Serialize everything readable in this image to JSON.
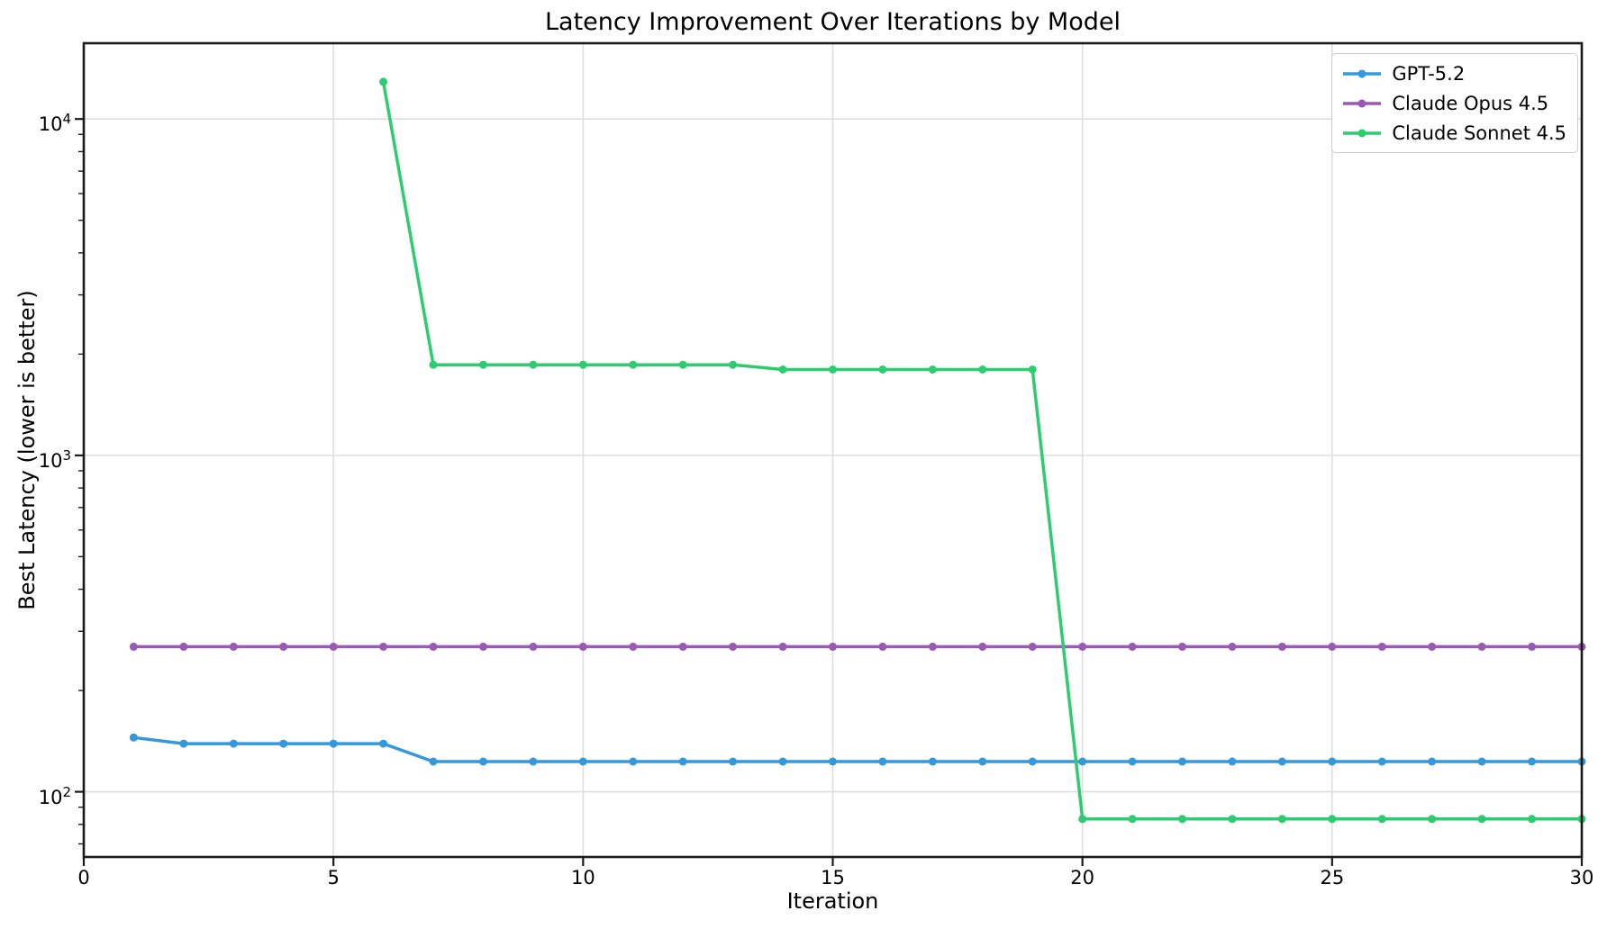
{
  "chart_data": {
    "type": "line",
    "title": "Latency Improvement Over Iterations by Model",
    "xlabel": "Iteration",
    "ylabel": "Best Latency (lower is better)",
    "yscale": "log",
    "grid": true,
    "legend_position": "upper right",
    "xlim": [
      0,
      30
    ],
    "ylim": [
      64,
      16800
    ],
    "x_ticks": [
      0,
      5,
      10,
      15,
      20,
      25,
      30
    ],
    "y_ticks": [
      {
        "value": 100,
        "exponent": 2
      },
      {
        "value": 1000,
        "exponent": 3
      },
      {
        "value": 10000,
        "exponent": 4
      }
    ],
    "colors": {
      "grid": "#dedede",
      "spine": "#1a1a1a",
      "background": "#ffffff"
    },
    "series": [
      {
        "name": "GPT-5.2",
        "color": "#3498db",
        "x": [
          1,
          2,
          3,
          4,
          5,
          6,
          7,
          8,
          9,
          10,
          11,
          12,
          13,
          14,
          15,
          16,
          17,
          18,
          19,
          20,
          21,
          22,
          23,
          24,
          25,
          26,
          27,
          28,
          29,
          30
        ],
        "y": [
          145,
          139,
          139,
          139,
          139,
          139,
          123,
          123,
          123,
          123,
          123,
          123,
          123,
          123,
          123,
          123,
          123,
          123,
          123,
          123,
          123,
          123,
          123,
          123,
          123,
          123,
          123,
          123,
          123,
          123
        ]
      },
      {
        "name": "Claude Opus 4.5",
        "color": "#9b59b6",
        "x": [
          1,
          2,
          3,
          4,
          5,
          6,
          7,
          8,
          9,
          10,
          11,
          12,
          13,
          14,
          15,
          16,
          17,
          18,
          19,
          20,
          21,
          22,
          23,
          24,
          25,
          26,
          27,
          28,
          29,
          30
        ],
        "y": [
          270,
          270,
          270,
          270,
          270,
          270,
          270,
          270,
          270,
          270,
          270,
          270,
          270,
          270,
          270,
          270,
          270,
          270,
          270,
          270,
          270,
          270,
          270,
          270,
          270,
          270,
          270,
          270,
          270,
          270
        ]
      },
      {
        "name": "Claude Sonnet 4.5",
        "color": "#2ecc71",
        "x": [
          6,
          7,
          8,
          9,
          10,
          11,
          12,
          13,
          14,
          15,
          16,
          17,
          18,
          19,
          20,
          21,
          22,
          23,
          24,
          25,
          26,
          27,
          28,
          29,
          30
        ],
        "y": [
          12900,
          1860,
          1860,
          1860,
          1860,
          1860,
          1860,
          1860,
          1800,
          1800,
          1800,
          1800,
          1800,
          1800,
          83,
          83,
          83,
          83,
          83,
          83,
          83,
          83,
          83,
          83,
          83
        ]
      }
    ]
  }
}
